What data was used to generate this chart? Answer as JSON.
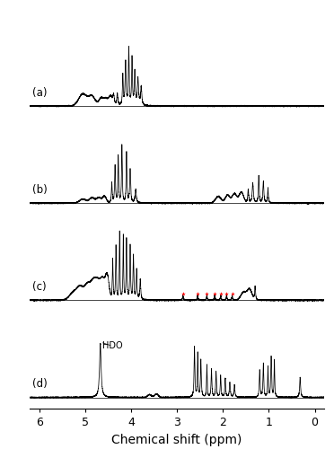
{
  "xlabel": "Chemical shift (ppm)",
  "xlim": [
    6.2,
    -0.2
  ],
  "x_ticks": [
    6,
    5,
    4,
    3,
    2,
    1,
    0
  ],
  "x_tick_labels": [
    "6",
    "5",
    "4",
    "3",
    "2",
    "1",
    "0"
  ],
  "panel_labels": [
    "(a)",
    "(b)",
    "(c)",
    "(d)"
  ],
  "HDO_label": "HDO",
  "red_star_positions": [
    2.87,
    2.55,
    2.35,
    2.18,
    2.05,
    1.92,
    1.8
  ],
  "background_color": "#ffffff",
  "line_color": "#000000",
  "red_color": "#ff0000"
}
